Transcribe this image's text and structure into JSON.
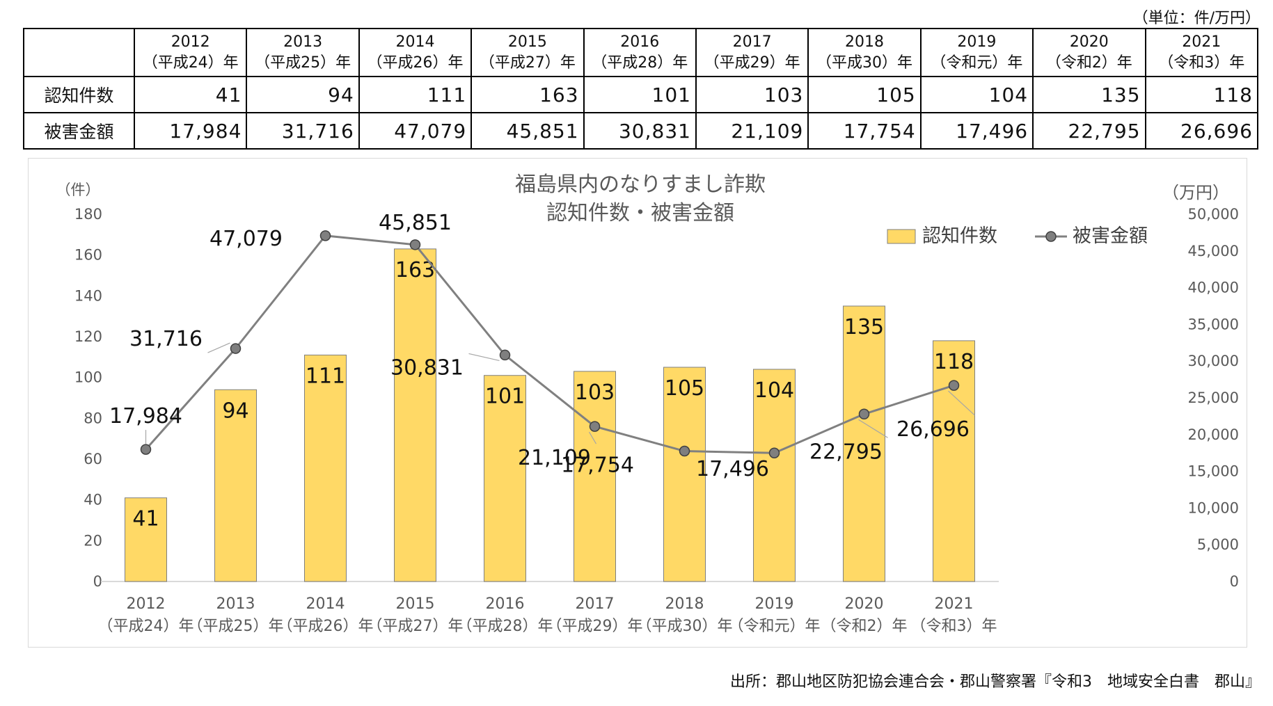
{
  "unit_note": "（単位：件/万円）",
  "table": {
    "headers": [
      {
        "year": "2012",
        "era": "（平成24）年"
      },
      {
        "year": "2013",
        "era": "（平成25）年"
      },
      {
        "year": "2014",
        "era": "（平成26）年"
      },
      {
        "year": "2015",
        "era": "（平成27）年"
      },
      {
        "year": "2016",
        "era": "（平成28）年"
      },
      {
        "year": "2017",
        "era": "（平成29）年"
      },
      {
        "year": "2018",
        "era": "（平成30）年"
      },
      {
        "year": "2019",
        "era": "（令和元）年"
      },
      {
        "year": "2020",
        "era": "（令和2）年"
      },
      {
        "year": "2021",
        "era": "（令和3）年"
      }
    ],
    "rows": [
      {
        "label": "認知件数",
        "values": [
          "41",
          "94",
          "111",
          "163",
          "101",
          "103",
          "105",
          "104",
          "135",
          "118"
        ]
      },
      {
        "label": "被害金額",
        "values": [
          "17,984",
          "31,716",
          "47,079",
          "45,851",
          "30,831",
          "21,109",
          "17,754",
          "17,496",
          "22,795",
          "26,696"
        ]
      }
    ]
  },
  "chart_data": {
    "type": "bar",
    "title": "福島県内のなりすまし詐欺",
    "subtitle": "認知件数・被害金額",
    "categories": [
      {
        "year": "2012",
        "era": "（平成24）年"
      },
      {
        "year": "2013",
        "era": "（平成25）年"
      },
      {
        "year": "2014",
        "era": "（平成26）年"
      },
      {
        "year": "2015",
        "era": "（平成27）年"
      },
      {
        "year": "2016",
        "era": "（平成28）年"
      },
      {
        "year": "2017",
        "era": "（平成29）年"
      },
      {
        "year": "2018",
        "era": "（平成30）年"
      },
      {
        "year": "2019",
        "era": "（令和元）年"
      },
      {
        "year": "2020",
        "era": "（令和2）年"
      },
      {
        "year": "2021",
        "era": "（令和3）年"
      }
    ],
    "series": [
      {
        "name": "認知件数",
        "type": "bar",
        "axis": "left",
        "color": "#FFD966",
        "edge_color": "#7f7f7f",
        "values": [
          41,
          94,
          111,
          163,
          101,
          103,
          105,
          104,
          135,
          118
        ],
        "labels": [
          "41",
          "94",
          "111",
          "163",
          "101",
          "103",
          "105",
          "104",
          "135",
          "118"
        ]
      },
      {
        "name": "被害金額",
        "type": "line",
        "axis": "right",
        "color": "#808080",
        "marker_color": "#7f7f7f",
        "values": [
          17984,
          31716,
          47079,
          45851,
          30831,
          21109,
          17754,
          17496,
          22795,
          26696
        ],
        "labels": [
          "17,984",
          "31,716",
          "47,079",
          "45,851",
          "30,831",
          "21,109",
          "17,754",
          "17,496",
          "22,795",
          "26,696"
        ]
      }
    ],
    "y_left": {
      "unit_label": "（件）",
      "min": 0,
      "max": 180,
      "step": 20,
      "ticks": [
        "0",
        "20",
        "40",
        "60",
        "80",
        "100",
        "120",
        "140",
        "160",
        "180"
      ]
    },
    "y_right": {
      "unit_label": "（万円）",
      "min": 0,
      "max": 50000,
      "step": 5000,
      "ticks": [
        "0",
        "5,000",
        "10,000",
        "15,000",
        "20,000",
        "25,000",
        "30,000",
        "35,000",
        "40,000",
        "45,000",
        "50,000"
      ]
    },
    "grid": false,
    "legend_position": "top-right"
  },
  "source_note": "出所：郡山地区防犯協会連合会・郡山警察署『令和3　地域安全白書　郡山』"
}
